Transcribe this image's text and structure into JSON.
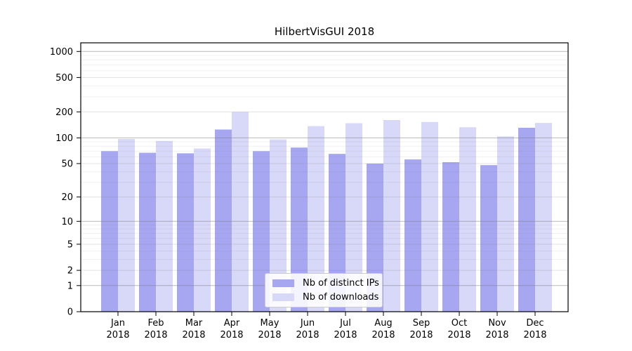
{
  "chart_data": {
    "type": "bar",
    "title": "HilbertVisGUI 2018",
    "categories": [
      "Jan",
      "Feb",
      "Mar",
      "Apr",
      "May",
      "Jun",
      "Jul",
      "Aug",
      "Sep",
      "Oct",
      "Nov",
      "Dec"
    ],
    "category_year": "2018",
    "series": [
      {
        "key": "distinct-ips",
        "name": "Nb of distinct IPs",
        "color": "#a6a6f1",
        "values": [
          70,
          67,
          66,
          125,
          70,
          77,
          65,
          50,
          56,
          52,
          48,
          131
        ]
      },
      {
        "key": "downloads",
        "name": "Nb of downloads",
        "color": "#d8d8f8",
        "values": [
          97,
          92,
          75,
          200,
          96,
          137,
          148,
          161,
          153,
          133,
          104,
          149
        ]
      }
    ],
    "y_axis": {
      "scale": "log1p",
      "ticks": [
        0,
        1,
        2,
        5,
        10,
        20,
        50,
        100,
        200,
        500,
        1000
      ],
      "range": [
        0,
        1258
      ]
    },
    "xlabel": "",
    "ylabel": "",
    "grid": true,
    "legend_position": "lower-center-inside",
    "colors": {
      "spine": "#000000",
      "grid": "#808080",
      "background": "#ffffff",
      "text": "#000000"
    }
  }
}
